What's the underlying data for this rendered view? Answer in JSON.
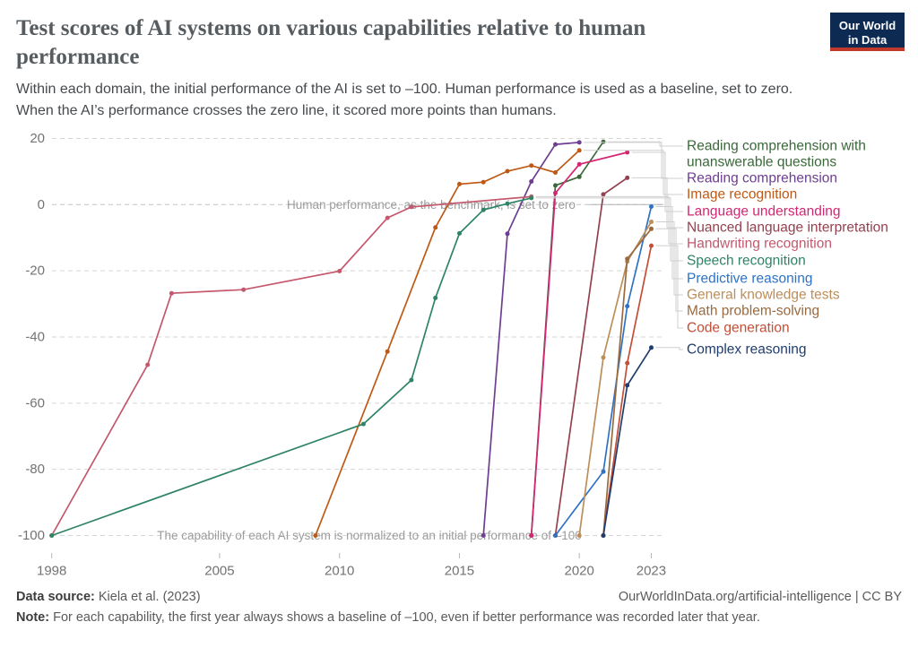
{
  "header": {
    "title_line1": "Test scores of AI systems on various capabilities relative to human",
    "title_line2": "performance",
    "subtitle_line1": "Within each domain, the initial performance of the AI is set to –100. Human performance is used as a baseline, set to zero.",
    "subtitle_line2": "When the AI’s performance crosses the zero line, it scored more points than humans.",
    "logo_line1": "Our World",
    "logo_line2": "in Data",
    "logo_bg": "#0d2a52",
    "logo_bar": "#c0392b"
  },
  "chart_data": {
    "type": "line",
    "title": "Test scores of AI systems on various capabilities relative to human performance",
    "xlabel": "",
    "ylabel": "",
    "xlim": [
      1998,
      2023.6
    ],
    "ylim": [
      -100,
      20
    ],
    "grid": "horizontal-dashed",
    "legend_position": "right",
    "x_ticks": [
      1998,
      2005,
      2010,
      2015,
      2020,
      2023
    ],
    "y_ticks": [
      20,
      0,
      -20,
      -40,
      -60,
      -80,
      -100
    ],
    "annotations": {
      "zero_line": "Human performance, as the benchmark, is set to zero",
      "baseline": "The capability of each AI system is normalized to an initial performance of –100"
    },
    "series": [
      {
        "key": "reading-comprehension-unanswerable",
        "color": "#3a6939",
        "points": [
          [
            2018,
            -100
          ],
          [
            2019,
            5.8
          ],
          [
            2020,
            8.4
          ],
          [
            2021,
            19
          ]
        ]
      },
      {
        "key": "reading-comprehension",
        "color": "#6d3e91",
        "points": [
          [
            2016,
            -100
          ],
          [
            2017,
            -8.8
          ],
          [
            2018,
            7
          ],
          [
            2019,
            18.2
          ],
          [
            2020,
            18.8
          ]
        ]
      },
      {
        "key": "image-recognition",
        "color": "#be5915",
        "points": [
          [
            2009,
            -100
          ],
          [
            2012,
            -44.4
          ],
          [
            2014,
            -6.9
          ],
          [
            2015,
            6.2
          ],
          [
            2016,
            6.8
          ],
          [
            2017,
            10.1
          ],
          [
            2018,
            11.8
          ],
          [
            2019,
            9.7
          ],
          [
            2020,
            16.4
          ]
        ]
      },
      {
        "key": "language-understanding",
        "color": "#d32773",
        "points": [
          [
            2018,
            -100
          ],
          [
            2019,
            3.5
          ],
          [
            2020,
            12.2
          ],
          [
            2022,
            15.8
          ]
        ]
      },
      {
        "key": "nuanced-language-interpretation",
        "color": "#93404f",
        "points": [
          [
            2019,
            -100
          ],
          [
            2021,
            3.1
          ],
          [
            2022,
            8.1
          ]
        ]
      },
      {
        "key": "handwriting-recognition",
        "color": "#c4586d",
        "points": [
          [
            1998,
            -100
          ],
          [
            2002,
            -48.4
          ],
          [
            2003,
            -26.8
          ],
          [
            2006,
            -25.7
          ],
          [
            2010,
            -20.1
          ],
          [
            2012,
            -4
          ],
          [
            2013,
            -0.7
          ],
          [
            2018,
            2.4
          ]
        ]
      },
      {
        "key": "speech-recognition",
        "color": "#2e8465",
        "points": [
          [
            1998,
            -100
          ],
          [
            2011,
            -66.3
          ],
          [
            2013,
            -53
          ],
          [
            2014,
            -28.2
          ],
          [
            2015,
            -8.7
          ],
          [
            2016,
            -1.6
          ],
          [
            2017,
            0.3
          ],
          [
            2018,
            2
          ]
        ]
      },
      {
        "key": "predictive-reasoning",
        "color": "#2f72c4",
        "points": [
          [
            2019,
            -100
          ],
          [
            2021,
            -80.7
          ],
          [
            2022,
            -30.7
          ],
          [
            2023,
            -0.6
          ]
        ]
      },
      {
        "key": "general-knowledge-tests",
        "color": "#bc8e5a",
        "points": [
          [
            2020,
            -100
          ],
          [
            2021,
            -46.2
          ],
          [
            2022,
            -17.2
          ],
          [
            2023,
            -5.2
          ]
        ]
      },
      {
        "key": "math-problem-solving",
        "color": "#9a6a3f",
        "points": [
          [
            2021,
            -100
          ],
          [
            2022,
            -16.4
          ],
          [
            2023,
            -7.3
          ]
        ]
      },
      {
        "key": "code-generation",
        "color": "#c44e36",
        "points": [
          [
            2021,
            -100
          ],
          [
            2022,
            -47.9
          ],
          [
            2023,
            -12.4
          ]
        ]
      },
      {
        "key": "complex-reasoning",
        "color": "#1f3d6d",
        "points": [
          [
            2021,
            -100
          ],
          [
            2022,
            -54.6
          ],
          [
            2023,
            -43.2
          ]
        ]
      }
    ]
  },
  "legend": {
    "entries": [
      {
        "line1": "Reading comprehension with",
        "line2": "unanswerable questions"
      },
      {
        "line1": "Reading comprehension"
      },
      {
        "line1": "Image recognition"
      },
      {
        "line1": "Language understanding"
      },
      {
        "line1": "Nuanced language interpretation"
      },
      {
        "line1": "Handwriting recognition"
      },
      {
        "line1": "Speech recognition"
      },
      {
        "line1": "Predictive reasoning"
      },
      {
        "line1": "General knowledge tests"
      },
      {
        "line1": "Math problem-solving"
      },
      {
        "line1": "Code generation"
      },
      {
        "line1": "Complex reasoning"
      }
    ]
  },
  "footer": {
    "source_label": "Data source:",
    "source_value": " Kiela et al. (2023)",
    "attribution": "OurWorldInData.org/artificial-intelligence | CC BY",
    "note_label": "Note:",
    "note_value": " For each capability, the first year always shows a baseline of –100, even if better performance was recorded later that year."
  }
}
